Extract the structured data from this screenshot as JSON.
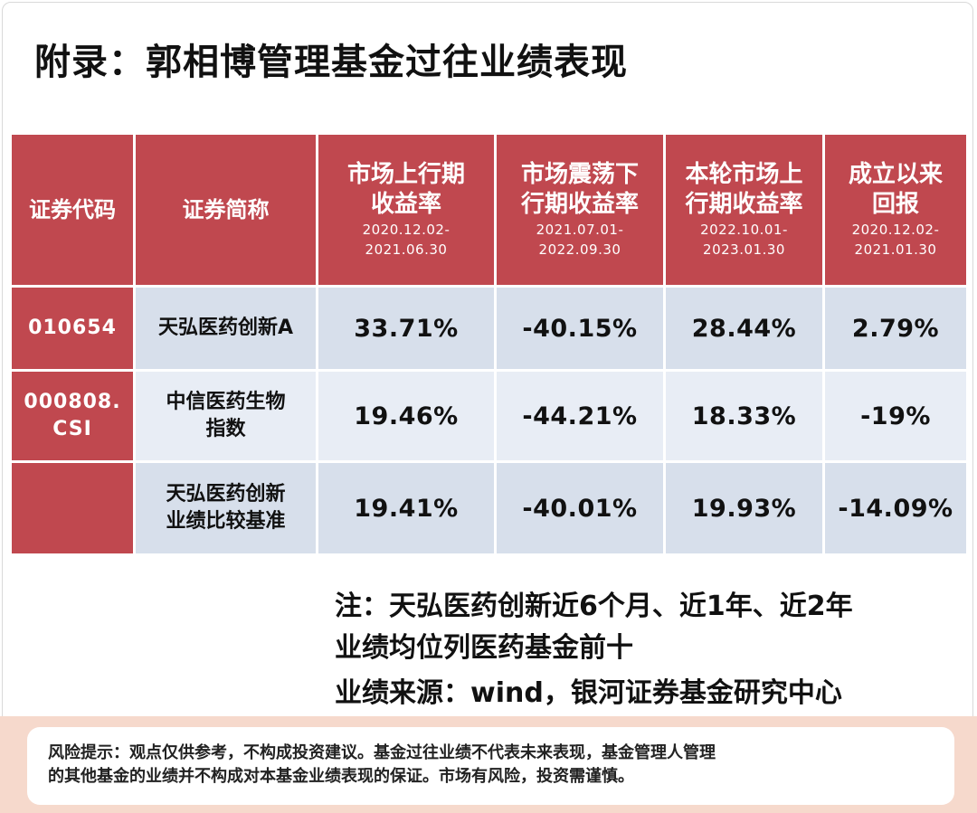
{
  "title": "附录：郭相博管理基金过往业绩表现",
  "table": {
    "headers": [
      {
        "main": "证券代码",
        "sub": ""
      },
      {
        "main": "证券简称",
        "sub": ""
      },
      {
        "main": "市场上行期收益率",
        "line1": "市场上行期",
        "line2": "收益率",
        "sub1": "2020.12.02-",
        "sub2": "2021.06.30"
      },
      {
        "main": "市场震荡下行期收益率",
        "line1": "市场震荡下",
        "line2": "行期收益率",
        "sub1": "2021.07.01-",
        "sub2": "2022.09.30"
      },
      {
        "main": "本轮市场上行期收益率",
        "line1": "本轮市场上",
        "line2": "行期收益率",
        "sub1": "2022.10.01-",
        "sub2": "2023.01.30"
      },
      {
        "main": "成立以来回报",
        "line1": "成立以来",
        "line2": "回报",
        "sub1": "2020.12.02-",
        "sub2": "2021.01.30"
      }
    ],
    "rows": [
      {
        "code": "010654",
        "code2": "",
        "name1": "天弘医药创新A",
        "name2": "",
        "values": [
          "33.71%",
          "-40.15%",
          "28.44%",
          "2.79%"
        ]
      },
      {
        "code": "000808.",
        "code2": "CSI",
        "name1": "中信医药生物",
        "name2": "指数",
        "values": [
          "19.46%",
          "-44.21%",
          "18.33%",
          "-19%"
        ]
      },
      {
        "code": "",
        "code2": "",
        "name1": "天弘医药创新",
        "name2": "业绩比较基准",
        "values": [
          "19.41%",
          "-40.01%",
          "19.93%",
          "-14.09%"
        ]
      }
    ]
  },
  "note": {
    "line1": "注：天弘医药创新近6个月、近1年、近2年",
    "line2": "业绩均位列医药基金前十",
    "source": "业绩来源：wind，银河证券基金研究中心"
  },
  "risk": {
    "line1": "风险提示：观点仅供参考，不构成投资建议。基金过往业绩不代表未来表现，基金管理人管理",
    "line2": "的其他基金的业绩并不构成对本基金业绩表现的保证。市场有风险，投资需谨慎。"
  },
  "colors": {
    "header_red": "#c0484f",
    "row_blue": "#d7dfeb",
    "row_light": "#e8edf5",
    "risk_band": "#f6d9cc"
  }
}
